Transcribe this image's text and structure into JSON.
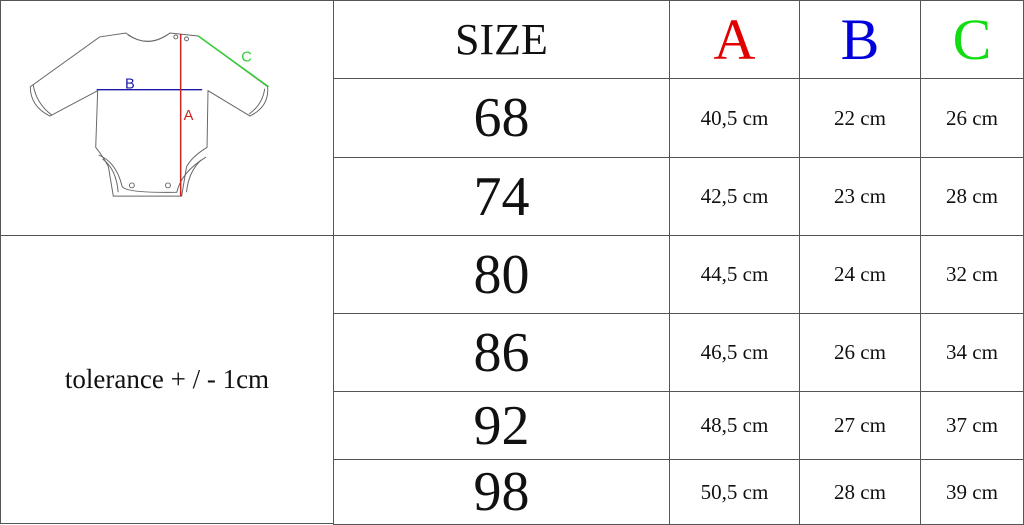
{
  "diagram": {
    "labels": {
      "a": "A",
      "b": "B",
      "c": "C"
    },
    "colors": {
      "a": "#cc2222",
      "b": "#1a1aa8",
      "c": "#33cc33",
      "outline": "#666666"
    }
  },
  "header": {
    "size_label": "SIZE",
    "col_a": "A",
    "col_b": "B",
    "col_c": "C",
    "colors": {
      "a": "#e00000",
      "b": "#0000dd",
      "c": "#11dd11"
    }
  },
  "tolerance": "tolerance + / - 1cm",
  "rows": [
    {
      "size": "68",
      "a": "40,5 cm",
      "b": "22 cm",
      "c": "26 cm"
    },
    {
      "size": "74",
      "a": "42,5 cm",
      "b": "23 cm",
      "c": "28 cm"
    },
    {
      "size": "80",
      "a": "44,5 cm",
      "b": "24 cm",
      "c": "32 cm"
    },
    {
      "size": "86",
      "a": "46,5 cm",
      "b": "26 cm",
      "c": "34 cm"
    },
    {
      "size": "92",
      "a": "48,5 cm",
      "b": "27 cm",
      "c": "37 cm"
    },
    {
      "size": "98",
      "a": "50,5 cm",
      "b": "28 cm",
      "c": "39 cm"
    }
  ]
}
